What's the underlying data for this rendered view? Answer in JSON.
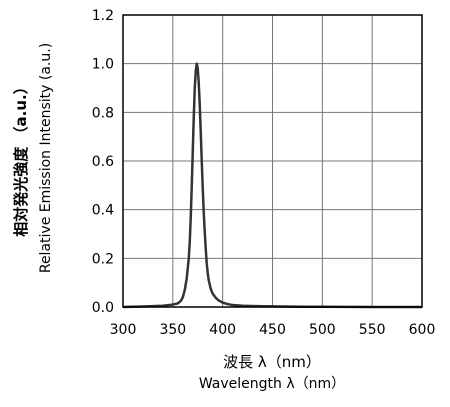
{
  "chart_data": {
    "type": "line",
    "title": "",
    "xlabel_jp": "波長 λ（nm）",
    "xlabel_en": "Wavelength λ（nm）",
    "ylabel_jp": "相対発光強度 （a.u.）",
    "ylabel_en": "Relative Emission Intensity (a.u.)",
    "xlim": [
      300,
      600
    ],
    "ylim": [
      0,
      1.2
    ],
    "xticks": [
      "300",
      "350",
      "400",
      "450",
      "500",
      "550",
      "600"
    ],
    "yticks": [
      "0.0",
      "0.2",
      "0.4",
      "0.6",
      "0.8",
      "1.0",
      "1.2"
    ],
    "grid": true,
    "series": [
      {
        "color": "#333333",
        "x": [
          300,
          320,
          340,
          350,
          355,
          358,
          360,
          362,
          364,
          366,
          367,
          368,
          369,
          370,
          371,
          372,
          373,
          374,
          375,
          376,
          377,
          378,
          379,
          380,
          381,
          382,
          383,
          384,
          385,
          386,
          388,
          390,
          393,
          396,
          400,
          405,
          410,
          420,
          440,
          460,
          480,
          500,
          550,
          600
        ],
        "y": [
          0.0,
          0.002,
          0.005,
          0.01,
          0.015,
          0.025,
          0.04,
          0.07,
          0.12,
          0.2,
          0.27,
          0.37,
          0.5,
          0.64,
          0.78,
          0.9,
          0.97,
          1.0,
          0.98,
          0.92,
          0.83,
          0.72,
          0.6,
          0.49,
          0.39,
          0.31,
          0.24,
          0.18,
          0.14,
          0.11,
          0.075,
          0.055,
          0.038,
          0.027,
          0.018,
          0.012,
          0.008,
          0.005,
          0.003,
          0.002,
          0.001,
          0.001,
          0.0,
          0.0
        ]
      }
    ]
  }
}
